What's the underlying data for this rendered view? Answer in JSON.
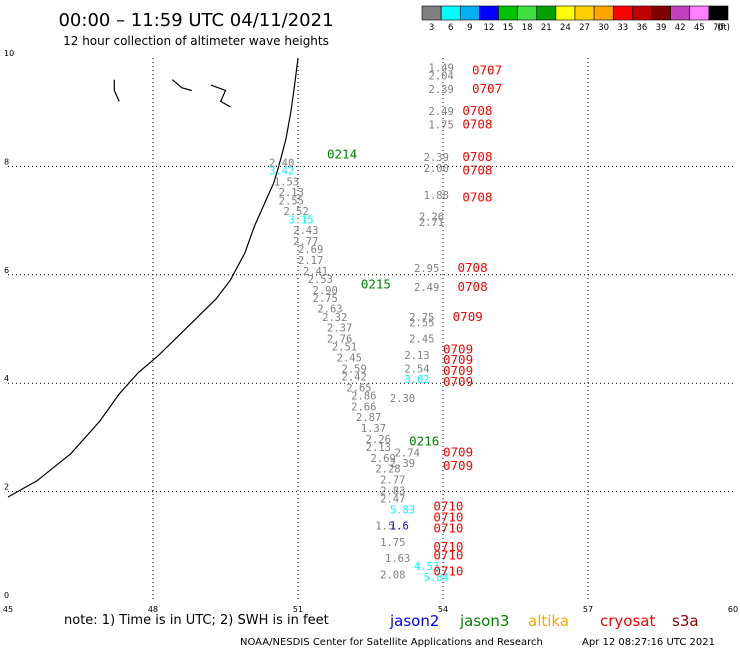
{
  "header": {
    "title": "00:00 – 11:59 UTC 04/11/2021",
    "subtitle": "12 hour collection of altimeter wave heights"
  },
  "colorbar": {
    "ticks": [
      "3",
      "6",
      "9",
      "12",
      "15",
      "18",
      "21",
      "24",
      "27",
      "30",
      "33",
      "36",
      "39",
      "42",
      "45",
      "70"
    ],
    "unit": "(ft)",
    "colors": [
      "#808080",
      "#00ffff",
      "#00b0f0",
      "#0000ff",
      "#00c000",
      "#40e040",
      "#00a000",
      "#ffff00",
      "#ffd000",
      "#ffa500",
      "#ff0000",
      "#c00000",
      "#800000",
      "#c040c0",
      "#ff80ff",
      "#000000"
    ]
  },
  "footer": {
    "note": "note: 1) Time is in UTC; 2) SWH is in feet",
    "credit": "NOAA/NESDIS Center for Satellite Applications and Research",
    "timestamp": "Apr 12 08:27:16 UTC 2021",
    "satellites": [
      {
        "name": "jason2",
        "color": "#0000ff"
      },
      {
        "name": "jason3",
        "color": "#008000"
      },
      {
        "name": "altika",
        "color": "#ffa500"
      },
      {
        "name": "cryosat",
        "color": "#ff0000"
      },
      {
        "name": "s3a",
        "color": "#8b0000"
      }
    ]
  },
  "chart_data": {
    "type": "scatter",
    "title": "00:00 – 11:59 UTC 04/11/2021",
    "xlim": [
      45,
      60
    ],
    "ylim": [
      0,
      10
    ],
    "xticks": [
      "45",
      "48",
      "51",
      "54",
      "57",
      "60"
    ],
    "yticks": [
      "0",
      "2",
      "4",
      "6",
      "8",
      "10"
    ],
    "grid": true,
    "track_labels": [
      {
        "text": "0214",
        "x": 51.6,
        "y": 8.15,
        "color": "#008000"
      },
      {
        "text": "0215",
        "x": 52.3,
        "y": 5.75,
        "color": "#008000"
      },
      {
        "text": "0216",
        "x": 53.3,
        "y": 2.85,
        "color": "#008000"
      },
      {
        "text": "0707",
        "x": 54.6,
        "y": 9.7,
        "color": "#ff0000"
      },
      {
        "text": "0707",
        "x": 54.6,
        "y": 9.35,
        "color": "#ff0000"
      },
      {
        "text": "0708",
        "x": 54.4,
        "y": 8.95,
        "color": "#ff0000"
      },
      {
        "text": "0708",
        "x": 54.4,
        "y": 8.7,
        "color": "#ff0000"
      },
      {
        "text": "0708",
        "x": 54.4,
        "y": 8.1,
        "color": "#ff0000"
      },
      {
        "text": "0708",
        "x": 54.4,
        "y": 7.85,
        "color": "#ff0000"
      },
      {
        "text": "0708",
        "x": 54.4,
        "y": 7.35,
        "color": "#ff0000"
      },
      {
        "text": "0708",
        "x": 54.3,
        "y": 6.05,
        "color": "#ff0000"
      },
      {
        "text": "0708",
        "x": 54.3,
        "y": 5.7,
        "color": "#ff0000"
      },
      {
        "text": "0709",
        "x": 54.2,
        "y": 5.15,
        "color": "#ff0000"
      },
      {
        "text": "0709",
        "x": 54.0,
        "y": 4.55,
        "color": "#ff0000"
      },
      {
        "text": "0709",
        "x": 54.0,
        "y": 4.35,
        "color": "#ff0000"
      },
      {
        "text": "0709",
        "x": 54.0,
        "y": 4.15,
        "color": "#ff0000"
      },
      {
        "text": "0709",
        "x": 54.0,
        "y": 3.95,
        "color": "#ff0000"
      },
      {
        "text": "0709",
        "x": 54.0,
        "y": 2.65,
        "color": "#ff0000"
      },
      {
        "text": "0709",
        "x": 54.0,
        "y": 2.4,
        "color": "#ff0000"
      },
      {
        "text": "0710",
        "x": 53.8,
        "y": 1.65,
        "color": "#ff0000"
      },
      {
        "text": "0710",
        "x": 53.8,
        "y": 1.45,
        "color": "#ff0000"
      },
      {
        "text": "0710",
        "x": 53.8,
        "y": 1.25,
        "color": "#ff0000"
      },
      {
        "text": "0710",
        "x": 53.8,
        "y": 0.9,
        "color": "#ff0000"
      },
      {
        "text": "0710",
        "x": 53.8,
        "y": 0.75,
        "color": "#ff0000"
      },
      {
        "text": "0710",
        "x": 53.8,
        "y": 0.45,
        "color": "#ff0000"
      }
    ],
    "points": [
      {
        "v": "2.40",
        "x": 50.4,
        "y": 8.0,
        "c": "#808080"
      },
      {
        "v": "3.42",
        "x": 50.4,
        "y": 7.85,
        "c": "#00ffff"
      },
      {
        "v": "1.53",
        "x": 50.5,
        "y": 7.65,
        "c": "#808080"
      },
      {
        "v": "2.13",
        "x": 50.6,
        "y": 7.45,
        "c": "#808080"
      },
      {
        "v": "2.55",
        "x": 50.6,
        "y": 7.3,
        "c": "#808080"
      },
      {
        "v": "2.52",
        "x": 50.7,
        "y": 7.1,
        "c": "#808080"
      },
      {
        "v": "3.15",
        "x": 50.8,
        "y": 6.95,
        "c": "#00ffff"
      },
      {
        "v": "2.43",
        "x": 50.9,
        "y": 6.75,
        "c": "#808080"
      },
      {
        "v": "2.77",
        "x": 50.9,
        "y": 6.55,
        "c": "#808080"
      },
      {
        "v": "2.69",
        "x": 51.0,
        "y": 6.4,
        "c": "#808080"
      },
      {
        "v": "2.17",
        "x": 51.0,
        "y": 6.2,
        "c": "#808080"
      },
      {
        "v": "2.41",
        "x": 51.1,
        "y": 6.0,
        "c": "#808080"
      },
      {
        "v": "2.53",
        "x": 51.2,
        "y": 5.85,
        "c": "#808080"
      },
      {
        "v": "2.90",
        "x": 51.3,
        "y": 5.65,
        "c": "#808080"
      },
      {
        "v": "2.75",
        "x": 51.3,
        "y": 5.5,
        "c": "#808080"
      },
      {
        "v": "2.63",
        "x": 51.4,
        "y": 5.3,
        "c": "#808080"
      },
      {
        "v": "2.32",
        "x": 51.5,
        "y": 5.15,
        "c": "#808080"
      },
      {
        "v": "2.37",
        "x": 51.6,
        "y": 4.95,
        "c": "#808080"
      },
      {
        "v": "2.76",
        "x": 51.6,
        "y": 4.75,
        "c": "#808080"
      },
      {
        "v": "2.51",
        "x": 51.7,
        "y": 4.6,
        "c": "#808080"
      },
      {
        "v": "2.45",
        "x": 51.8,
        "y": 4.4,
        "c": "#808080"
      },
      {
        "v": "2.59",
        "x": 51.9,
        "y": 4.2,
        "c": "#808080"
      },
      {
        "v": "2.42",
        "x": 51.9,
        "y": 4.05,
        "c": "#808080"
      },
      {
        "v": "2.65",
        "x": 52.0,
        "y": 3.85,
        "c": "#808080"
      },
      {
        "v": "2.86",
        "x": 52.1,
        "y": 3.7,
        "c": "#808080"
      },
      {
        "v": "2.66",
        "x": 52.1,
        "y": 3.5,
        "c": "#808080"
      },
      {
        "v": "2.87",
        "x": 52.2,
        "y": 3.3,
        "c": "#808080"
      },
      {
        "v": "1.37",
        "x": 52.3,
        "y": 3.1,
        "c": "#808080"
      },
      {
        "v": "2.26",
        "x": 52.4,
        "y": 2.9,
        "c": "#808080"
      },
      {
        "v": "2.13",
        "x": 52.4,
        "y": 2.75,
        "c": "#808080"
      },
      {
        "v": "2.69",
        "x": 52.5,
        "y": 2.55,
        "c": "#808080"
      },
      {
        "v": "2.28",
        "x": 52.6,
        "y": 2.35,
        "c": "#808080"
      },
      {
        "v": "2.77",
        "x": 52.7,
        "y": 2.15,
        "c": "#808080"
      },
      {
        "v": "2.83",
        "x": 52.7,
        "y": 1.95,
        "c": "#808080"
      },
      {
        "v": "2.47",
        "x": 52.7,
        "y": 1.8,
        "c": "#808080"
      },
      {
        "v": "5.83",
        "x": 52.9,
        "y": 1.6,
        "c": "#00ffff"
      },
      {
        "v": "1.5",
        "x": 52.6,
        "y": 1.3,
        "c": "#808080"
      },
      {
        "v": "1.6",
        "x": 52.9,
        "y": 1.3,
        "c": "#0000ff"
      },
      {
        "v": "1.75",
        "x": 52.7,
        "y": 1.0,
        "c": "#808080"
      },
      {
        "v": "1.63",
        "x": 52.8,
        "y": 0.7,
        "c": "#808080"
      },
      {
        "v": "2.08",
        "x": 52.7,
        "y": 0.4,
        "c": "#808080"
      },
      {
        "v": "4.53",
        "x": 53.4,
        "y": 0.55,
        "c": "#00ffff"
      },
      {
        "v": "5.84",
        "x": 53.6,
        "y": 0.35,
        "c": "#00ffff"
      },
      {
        "v": "1.49",
        "x": 53.7,
        "y": 9.75,
        "c": "#808080"
      },
      {
        "v": "2.04",
        "x": 53.7,
        "y": 9.6,
        "c": "#808080"
      },
      {
        "v": "2.39",
        "x": 53.7,
        "y": 9.35,
        "c": "#808080"
      },
      {
        "v": "2.49",
        "x": 53.7,
        "y": 8.95,
        "c": "#808080"
      },
      {
        "v": "1.75",
        "x": 53.7,
        "y": 8.7,
        "c": "#808080"
      },
      {
        "v": "2.39",
        "x": 53.6,
        "y": 8.1,
        "c": "#808080"
      },
      {
        "v": "2.00",
        "x": 53.6,
        "y": 7.9,
        "c": "#808080"
      },
      {
        "v": "1.88",
        "x": 53.6,
        "y": 7.4,
        "c": "#808080"
      },
      {
        "v": "2.26",
        "x": 53.5,
        "y": 7.0,
        "c": "#808080"
      },
      {
        "v": "2.71",
        "x": 53.5,
        "y": 6.9,
        "c": "#808080"
      },
      {
        "v": "2.95",
        "x": 53.4,
        "y": 6.05,
        "c": "#808080"
      },
      {
        "v": "2.49",
        "x": 53.4,
        "y": 5.7,
        "c": "#808080"
      },
      {
        "v": "2.75",
        "x": 53.3,
        "y": 5.15,
        "c": "#808080"
      },
      {
        "v": "2.55",
        "x": 53.3,
        "y": 5.05,
        "c": "#808080"
      },
      {
        "v": "2.45",
        "x": 53.3,
        "y": 4.75,
        "c": "#808080"
      },
      {
        "v": "2.13",
        "x": 53.2,
        "y": 4.45,
        "c": "#808080"
      },
      {
        "v": "2.54",
        "x": 53.2,
        "y": 4.2,
        "c": "#808080"
      },
      {
        "v": "3.02",
        "x": 53.2,
        "y": 4.0,
        "c": "#00ffff"
      },
      {
        "v": "2.30",
        "x": 52.9,
        "y": 3.65,
        "c": "#808080"
      },
      {
        "v": "2.74",
        "x": 53.0,
        "y": 2.65,
        "c": "#808080"
      },
      {
        "v": "2.39",
        "x": 52.9,
        "y": 2.45,
        "c": "#808080"
      }
    ],
    "coastline": [
      [
        45,
        1.9
      ],
      [
        45.6,
        2.2
      ],
      [
        46.3,
        2.7
      ],
      [
        46.9,
        3.3
      ],
      [
        47.3,
        3.8
      ],
      [
        47.7,
        4.2
      ],
      [
        48.1,
        4.5
      ],
      [
        48.5,
        4.85
      ],
      [
        48.9,
        5.2
      ],
      [
        49.3,
        5.55
      ],
      [
        49.6,
        5.9
      ],
      [
        49.9,
        6.4
      ],
      [
        50.1,
        6.9
      ],
      [
        50.3,
        7.3
      ],
      [
        50.5,
        7.7
      ],
      [
        50.6,
        8.0
      ],
      [
        50.75,
        8.5
      ],
      [
        50.85,
        9.0
      ],
      [
        50.93,
        9.5
      ],
      [
        51.0,
        10
      ]
    ],
    "islands": [
      [
        [
          47.2,
          9.6
        ],
        [
          47.2,
          9.4
        ],
        [
          47.3,
          9.2
        ]
      ],
      [
        [
          48.4,
          9.6
        ],
        [
          48.6,
          9.45
        ],
        [
          48.8,
          9.4
        ]
      ],
      [
        [
          49.2,
          9.5
        ],
        [
          49.5,
          9.4
        ],
        [
          49.4,
          9.2
        ],
        [
          49.6,
          9.1
        ]
      ]
    ]
  }
}
